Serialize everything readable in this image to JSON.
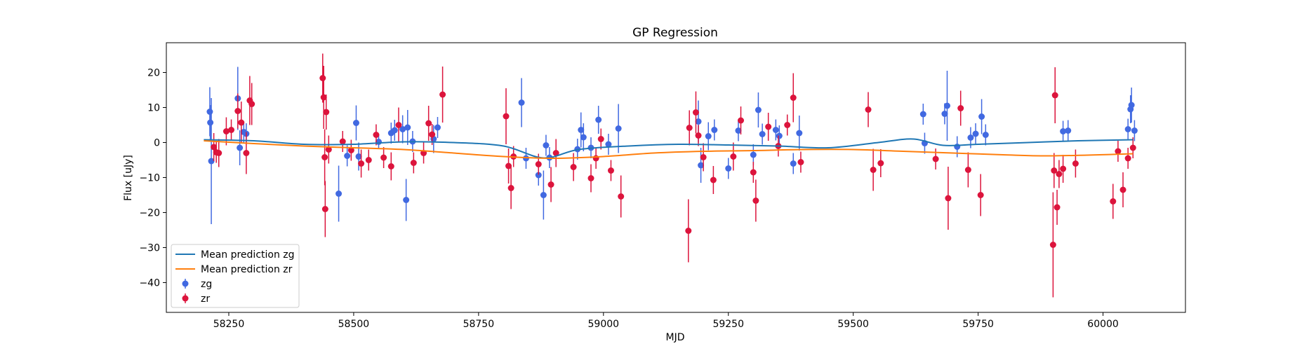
{
  "chart_data": {
    "type": "scatter",
    "title": "GP Regression",
    "xlabel": "MJD",
    "ylabel": "Flux [uJy]",
    "xlim": [
      58125,
      60165
    ],
    "ylim": [
      -48.5,
      28.5
    ],
    "xticks": [
      58250,
      58500,
      58750,
      59000,
      59250,
      59500,
      59750,
      60000
    ],
    "yticks": [
      20,
      10,
      0,
      -10,
      -20,
      -30,
      -40
    ],
    "grid": false,
    "legend_position": "lower-left",
    "colors": {
      "zg_points": "#4169e1",
      "zr_points": "#dc143c",
      "zg_line": "#1f77b4",
      "zr_line": "#ff7f0e"
    },
    "lines": [
      {
        "name": "Mean prediction zg",
        "x": [
          58200,
          58300,
          58400,
          58500,
          58600,
          58700,
          58800,
          58880,
          58950,
          59050,
          59150,
          59250,
          59350,
          59450,
          59550,
          59620,
          59680,
          59750,
          59850,
          59950,
          60060
        ],
        "y": [
          0.8,
          0.5,
          -0.5,
          -0.5,
          0.2,
          0,
          -1,
          -4.4,
          -2,
          -1,
          -0.5,
          -0.7,
          -1,
          -1.5,
          0,
          1,
          -0.8,
          -0.5,
          0,
          0.5,
          0.8
        ]
      },
      {
        "name": "Mean prediction zr",
        "x": [
          58200,
          58300,
          58400,
          58500,
          58600,
          58700,
          58800,
          58900,
          59000,
          59100,
          59200,
          59300,
          59400,
          59500,
          59600,
          59700,
          59800,
          59900,
          60060
        ],
        "y": [
          0.5,
          -0.3,
          -1,
          -1.5,
          -2,
          -3,
          -4,
          -4.5,
          -4,
          -3,
          -2.5,
          -2.3,
          -2,
          -2,
          -2.5,
          -3,
          -3.5,
          -3.8,
          -3.2
        ]
      }
    ],
    "series": [
      {
        "name": "zg",
        "points": [
          [
            58212,
            8.8,
            7
          ],
          [
            58213,
            5.7,
            5
          ],
          [
            58215,
            -5.3,
            18
          ],
          [
            58268,
            12.6,
            9
          ],
          [
            58272,
            -1.5,
            5
          ],
          [
            58280,
            3,
            3
          ],
          [
            58285,
            2.5,
            3
          ],
          [
            58470,
            -14.6,
            8
          ],
          [
            58487,
            -3.8,
            3
          ],
          [
            58505,
            5.6,
            5
          ],
          [
            58510,
            -4,
            4
          ],
          [
            58550,
            0.2,
            2
          ],
          [
            58575,
            2.7,
            3
          ],
          [
            58582,
            3.5,
            3
          ],
          [
            58598,
            3.8,
            4
          ],
          [
            58605,
            -16.4,
            6
          ],
          [
            58608,
            4.3,
            5
          ],
          [
            58618,
            0.3,
            3
          ],
          [
            58660,
            1,
            4
          ],
          [
            58668,
            4.3,
            3
          ],
          [
            58836,
            11.4,
            7
          ],
          [
            58845,
            -4.5,
            3
          ],
          [
            58870,
            -9.3,
            3
          ],
          [
            58880,
            -15,
            7
          ],
          [
            58885,
            -0.8,
            3
          ],
          [
            58892,
            -4.3,
            3
          ],
          [
            58948,
            -1.9,
            3
          ],
          [
            58955,
            3.6,
            5
          ],
          [
            58960,
            1.5,
            4
          ],
          [
            58975,
            -1.5,
            3
          ],
          [
            58990,
            6.5,
            4
          ],
          [
            59010,
            -0.5,
            3
          ],
          [
            59030,
            4,
            7
          ],
          [
            59190,
            6,
            6
          ],
          [
            59195,
            -6.5,
            5
          ],
          [
            59210,
            1.8,
            4
          ],
          [
            59222,
            3.6,
            3
          ],
          [
            59250,
            -7.4,
            3
          ],
          [
            59270,
            3.4,
            3
          ],
          [
            59300,
            -3.5,
            3
          ],
          [
            59310,
            9.3,
            5
          ],
          [
            59318,
            2.4,
            3
          ],
          [
            59345,
            3.6,
            3
          ],
          [
            59352,
            1.9,
            3
          ],
          [
            59380,
            -6,
            3
          ],
          [
            59392,
            2.7,
            5
          ],
          [
            59640,
            8.1,
            3
          ],
          [
            59643,
            -0.2,
            3
          ],
          [
            59683,
            8.2,
            3
          ],
          [
            59688,
            10.5,
            10
          ],
          [
            59708,
            -1.2,
            3
          ],
          [
            59735,
            1.4,
            3
          ],
          [
            59745,
            2.5,
            3
          ],
          [
            59757,
            7.4,
            5
          ],
          [
            59765,
            2.2,
            3
          ],
          [
            59920,
            3.2,
            3
          ],
          [
            59930,
            3.4,
            3
          ],
          [
            60050,
            3.8,
            3
          ],
          [
            60055,
            9.5,
            4
          ],
          [
            60057,
            10.7,
            5
          ],
          [
            60063,
            3.4,
            3
          ]
        ]
      },
      {
        "name": "zr",
        "points": [
          [
            58220,
            -1.3,
            4
          ],
          [
            58225,
            -2.8,
            3
          ],
          [
            58230,
            -3,
            4
          ],
          [
            58245,
            3.2,
            4
          ],
          [
            58255,
            3.6,
            3
          ],
          [
            58268,
            9,
            5
          ],
          [
            58275,
            5.7,
            6
          ],
          [
            58285,
            -3,
            6
          ],
          [
            58292,
            12,
            7
          ],
          [
            58296,
            11,
            6
          ],
          [
            58438,
            18.4,
            7
          ],
          [
            58440,
            12.9,
            9
          ],
          [
            58442,
            -4.2,
            8
          ],
          [
            58443,
            -19,
            8
          ],
          [
            58445,
            8.7,
            5
          ],
          [
            58450,
            -2,
            4
          ],
          [
            58478,
            0.3,
            3
          ],
          [
            58495,
            -2.2,
            3
          ],
          [
            58515,
            -6,
            4
          ],
          [
            58530,
            -5,
            3
          ],
          [
            58545,
            2.2,
            3
          ],
          [
            58560,
            -4.3,
            3
          ],
          [
            58575,
            -6.8,
            4
          ],
          [
            58590,
            5,
            5
          ],
          [
            58620,
            -5.8,
            3
          ],
          [
            58640,
            -3,
            3
          ],
          [
            58650,
            5.5,
            5
          ],
          [
            58657,
            2.3,
            3
          ],
          [
            58678,
            13.7,
            8
          ],
          [
            58805,
            7.5,
            8
          ],
          [
            58810,
            -6.7,
            5
          ],
          [
            58815,
            -13,
            6
          ],
          [
            58820,
            -4,
            3
          ],
          [
            58870,
            -6.2,
            3
          ],
          [
            58895,
            -12,
            5
          ],
          [
            58905,
            -3,
            4
          ],
          [
            58940,
            -7,
            4
          ],
          [
            58975,
            -10.2,
            4
          ],
          [
            58985,
            -4.5,
            3
          ],
          [
            58995,
            1,
            3
          ],
          [
            59015,
            -8,
            3
          ],
          [
            59035,
            -15.4,
            6
          ],
          [
            59170,
            -25.2,
            9
          ],
          [
            59172,
            4.2,
            5
          ],
          [
            59185,
            8.6,
            6
          ],
          [
            59190,
            2,
            3
          ],
          [
            59200,
            -4.2,
            4
          ],
          [
            59220,
            -10.7,
            4
          ],
          [
            59260,
            -4,
            4
          ],
          [
            59275,
            6.3,
            4
          ],
          [
            59300,
            -8.5,
            3
          ],
          [
            59305,
            -16.6,
            6
          ],
          [
            59330,
            4.5,
            4
          ],
          [
            59350,
            -1,
            3
          ],
          [
            59368,
            5,
            3
          ],
          [
            59380,
            12.8,
            7
          ],
          [
            59395,
            -5.6,
            3
          ],
          [
            59530,
            9.4,
            5
          ],
          [
            59540,
            -7.8,
            6
          ],
          [
            59555,
            -5.9,
            4
          ],
          [
            59665,
            -4.7,
            3
          ],
          [
            59690,
            -15.9,
            9
          ],
          [
            59715,
            9.8,
            5
          ],
          [
            59730,
            -7.8,
            5
          ],
          [
            59755,
            -15,
            6
          ],
          [
            59900,
            -29.2,
            15
          ],
          [
            59902,
            -8,
            5
          ],
          [
            59904,
            13.5,
            8
          ],
          [
            59908,
            -18.5,
            5
          ],
          [
            59912,
            -9,
            4
          ],
          [
            59920,
            -7.5,
            4
          ],
          [
            59945,
            -6,
            4
          ],
          [
            60020,
            -16.8,
            5
          ],
          [
            60030,
            -2.5,
            3
          ],
          [
            60040,
            -13.5,
            5
          ],
          [
            60050,
            -4.5,
            3
          ],
          [
            60060,
            -1.5,
            3
          ]
        ]
      }
    ]
  }
}
